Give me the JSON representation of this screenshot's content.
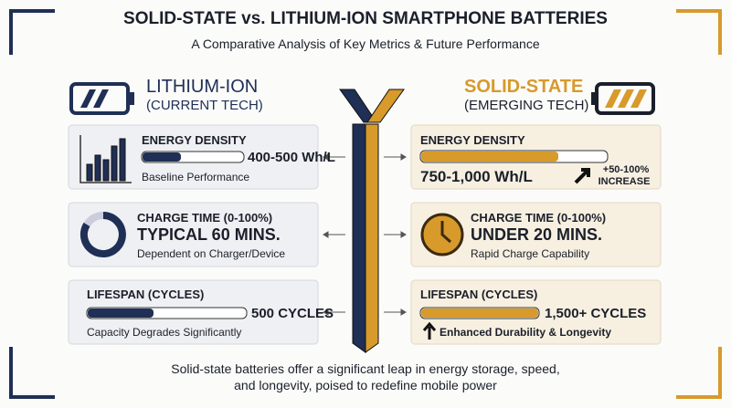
{
  "header": {
    "title": "SOLID-STATE vs. LITHIUM-ION SMARTPHONE BATTERIES",
    "subtitle": "A Comparative Analysis of Key Metrics & Future Performance"
  },
  "left": {
    "name": "LITHIUM-ION",
    "tag": "(CURRENT TECH)",
    "cards": [
      {
        "title": "ENERGY DENSITY",
        "value": "400-500 Wh/L",
        "note": "Baseline Performance"
      },
      {
        "title": "CHARGE TIME (0-100%)",
        "value": "TYPICAL 60 MINS.",
        "note": "Dependent on Charger/Device"
      },
      {
        "title": "LIFESPAN (CYCLES)",
        "value": "500 CYCLES",
        "note": "Capacity Degrades Significantly"
      }
    ]
  },
  "right": {
    "name": "SOLID-STATE",
    "tag": "(EMERGING TECH)",
    "cards": [
      {
        "title": "ENERGY DENSITY",
        "value": "750-1,000 Wh/L",
        "badge": "+50-100%",
        "badge_note": "INCREASE"
      },
      {
        "title": "CHARGE TIME (0-100%)",
        "value": "UNDER 20 MINS.",
        "note": "Rapid Charge Capability"
      },
      {
        "title": "LIFESPAN (CYCLES)",
        "value": "1,500+ CYCLES",
        "note": "Enhanced Durability & Longevity"
      }
    ]
  },
  "footer": {
    "lines": [
      "Solid-state batteries offer a significant leap in energy storage, speed,",
      "and longevity, poised to redefine mobile power"
    ]
  }
}
